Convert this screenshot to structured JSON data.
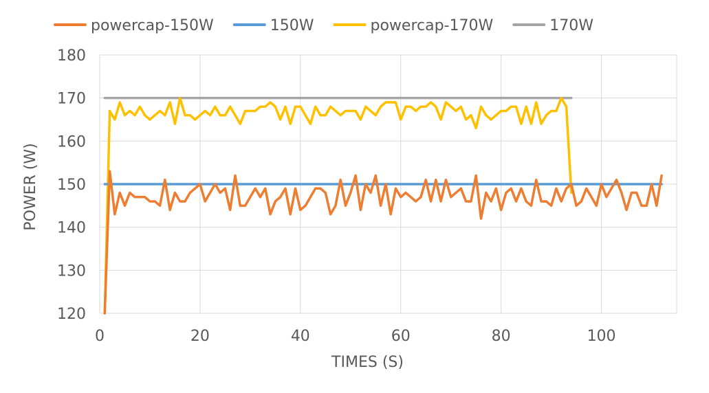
{
  "chart_data": {
    "type": "line",
    "xlabel": "TIMES (S)",
    "ylabel": "POWER (W)",
    "xlim": [
      0,
      115
    ],
    "ylim": [
      120,
      180
    ],
    "xticks": [
      0,
      20,
      40,
      60,
      80,
      100
    ],
    "yticks": [
      120,
      130,
      140,
      150,
      160,
      170,
      180
    ],
    "grid": true,
    "legend_position": "top",
    "series": [
      {
        "name": "powercap-150W",
        "color": "#ED7D31",
        "x": [
          1,
          2,
          3,
          4,
          5,
          6,
          7,
          8,
          9,
          10,
          11,
          12,
          13,
          14,
          15,
          16,
          17,
          18,
          19,
          20,
          21,
          22,
          23,
          24,
          25,
          26,
          27,
          28,
          29,
          30,
          31,
          32,
          33,
          34,
          35,
          36,
          37,
          38,
          39,
          40,
          41,
          42,
          43,
          44,
          45,
          46,
          47,
          48,
          49,
          50,
          51,
          52,
          53,
          54,
          55,
          56,
          57,
          58,
          59,
          60,
          61,
          62,
          63,
          64,
          65,
          66,
          67,
          68,
          69,
          70,
          71,
          72,
          73,
          74,
          75,
          76,
          77,
          78,
          79,
          80,
          81,
          82,
          83,
          84,
          85,
          86,
          87,
          88,
          89,
          90,
          91,
          92,
          93,
          94,
          95,
          96,
          97,
          98,
          99,
          100,
          101,
          102,
          103,
          104,
          105,
          106,
          107,
          108,
          109,
          110,
          111,
          112
        ],
        "y": [
          120,
          153,
          143,
          148,
          145,
          148,
          147,
          147,
          147,
          146,
          146,
          145,
          151,
          144,
          148,
          146,
          146,
          148,
          149,
          150,
          146,
          148,
          150,
          148,
          149,
          144,
          152,
          145,
          145,
          147,
          149,
          147,
          149,
          143,
          146,
          147,
          149,
          143,
          149,
          144,
          145,
          147,
          149,
          149,
          148,
          143,
          145,
          151,
          145,
          148,
          152,
          144,
          150,
          148,
          152,
          145,
          150,
          143,
          149,
          147,
          148,
          147,
          146,
          147,
          151,
          146,
          151,
          146,
          151,
          147,
          148,
          149,
          146,
          146,
          152,
          142,
          148,
          146,
          149,
          144,
          148,
          149,
          146,
          149,
          146,
          145,
          151,
          146,
          146,
          145,
          149,
          146,
          149,
          150,
          145,
          146,
          149,
          147,
          145,
          150,
          147,
          149,
          151,
          148,
          144,
          148,
          148,
          145,
          145,
          150,
          145,
          152
        ]
      },
      {
        "name": "150W",
        "color": "#5B9BD5",
        "x": [
          1,
          112
        ],
        "y": [
          150,
          150
        ]
      },
      {
        "name": "powercap-170W",
        "color": "#FFC000",
        "x": [
          1,
          2,
          3,
          4,
          5,
          6,
          7,
          8,
          9,
          10,
          11,
          12,
          13,
          14,
          15,
          16,
          17,
          18,
          19,
          20,
          21,
          22,
          23,
          24,
          25,
          26,
          27,
          28,
          29,
          30,
          31,
          32,
          33,
          34,
          35,
          36,
          37,
          38,
          39,
          40,
          41,
          42,
          43,
          44,
          45,
          46,
          47,
          48,
          49,
          50,
          51,
          52,
          53,
          54,
          55,
          56,
          57,
          58,
          59,
          60,
          61,
          62,
          63,
          64,
          65,
          66,
          67,
          68,
          69,
          70,
          71,
          72,
          73,
          74,
          75,
          76,
          77,
          78,
          79,
          80,
          81,
          82,
          83,
          84,
          85,
          86,
          87,
          88,
          89,
          90,
          91,
          92,
          93,
          94
        ],
        "y": [
          120,
          167,
          165,
          169,
          166,
          167,
          166,
          168,
          166,
          165,
          166,
          167,
          166,
          169,
          164,
          170,
          166,
          166,
          165,
          166,
          167,
          166,
          168,
          166,
          166,
          168,
          166,
          164,
          167,
          167,
          167,
          168,
          168,
          169,
          168,
          165,
          168,
          164,
          168,
          168,
          166,
          164,
          168,
          166,
          166,
          168,
          167,
          166,
          167,
          167,
          167,
          165,
          168,
          167,
          166,
          168,
          169,
          169,
          169,
          165,
          168,
          168,
          167,
          168,
          168,
          169,
          168,
          165,
          169,
          168,
          167,
          168,
          165,
          166,
          163,
          168,
          166,
          165,
          166,
          167,
          167,
          168,
          168,
          164,
          168,
          164,
          169,
          164,
          166,
          167,
          167,
          170,
          168,
          148
        ]
      },
      {
        "name": "170W",
        "color": "#A5A5A5",
        "x": [
          1,
          94
        ],
        "y": [
          170,
          170
        ]
      }
    ]
  }
}
